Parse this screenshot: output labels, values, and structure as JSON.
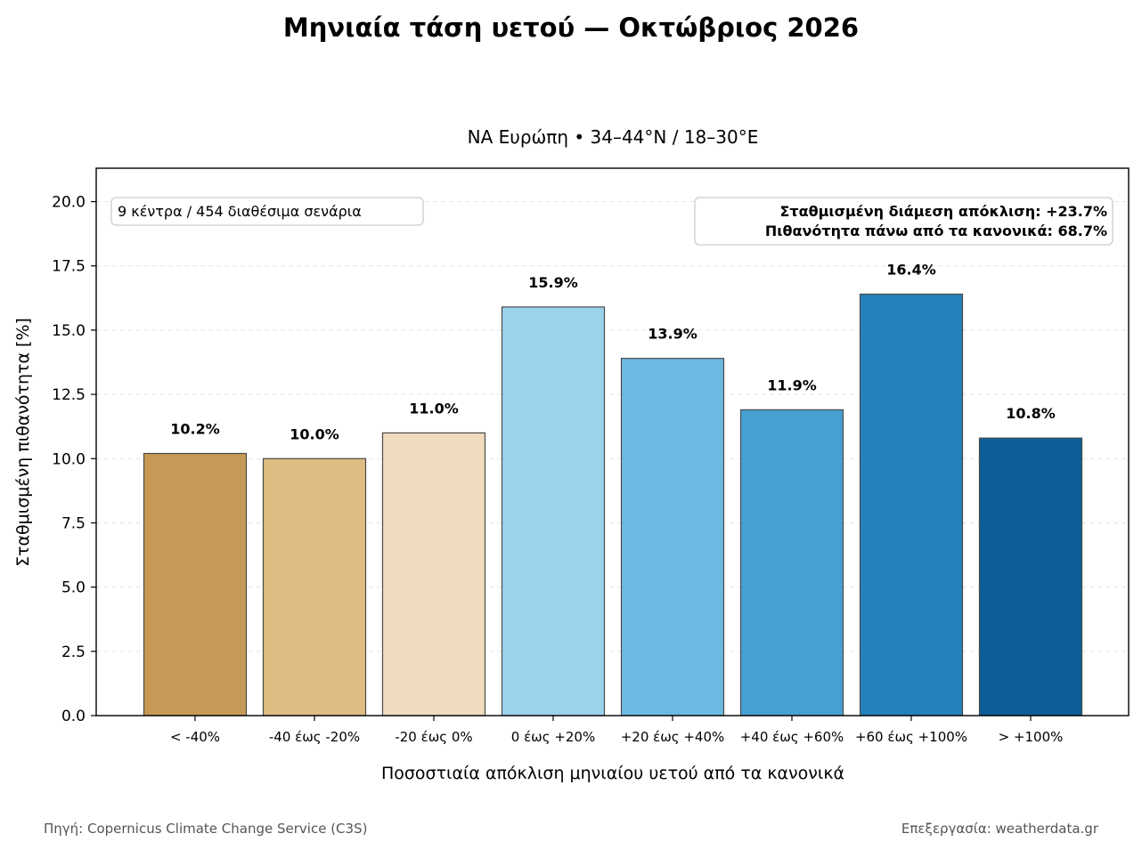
{
  "title": "Μηνιαία τάση υετού — Οκτώβριος 2026",
  "subtitle": "ΝΑ Ευρώπη  •  34–44°N / 18–30°E",
  "info_box": "9 κέντρα / 454 διαθέσιμα σενάρια",
  "stats": {
    "median": "Σταθμισμένη διάμεση απόκλιση: +23.7%",
    "prob_above": "Πιθανότητα πάνω από τα κανονικά: 68.7%"
  },
  "footer": {
    "source": "Πηγή: Copernicus Climate Change Service (C3S)",
    "processing": "Επεξεργασία: weatherdata.gr"
  },
  "chart_data": {
    "type": "bar",
    "categories": [
      "< -40%",
      "-40 έως -20%",
      "-20 έως 0%",
      "0 έως +20%",
      "+20 έως +40%",
      "+40 έως +60%",
      "+60 έως +100%",
      "> +100%"
    ],
    "values": [
      10.2,
      10.0,
      11.0,
      15.9,
      13.9,
      11.9,
      16.4,
      10.8
    ],
    "value_labels": [
      "10.2%",
      "10.0%",
      "11.0%",
      "15.9%",
      "13.9%",
      "11.9%",
      "16.4%",
      "10.8%"
    ],
    "colors": [
      "#c69a56",
      "#dfbc81",
      "#f0dbbf",
      "#9cd2ec",
      "#6cb9e1",
      "#479fd2",
      "#2680ba",
      "#0d5e98"
    ],
    "xlabel": "Ποσοστιαία απόκλιση μηνιαίου υετού από τα κανονικά",
    "ylabel": "Σταθμισμένη πιθανότητα [%]",
    "ylim": [
      0,
      21.3
    ],
    "yticks": [
      0.0,
      2.5,
      5.0,
      7.5,
      10.0,
      12.5,
      15.0,
      17.5,
      20.0
    ],
    "ytick_labels": [
      "0.0",
      "2.5",
      "5.0",
      "7.5",
      "10.0",
      "12.5",
      "15.0",
      "17.5",
      "20.0"
    ],
    "grid": "horizontal dashed"
  }
}
